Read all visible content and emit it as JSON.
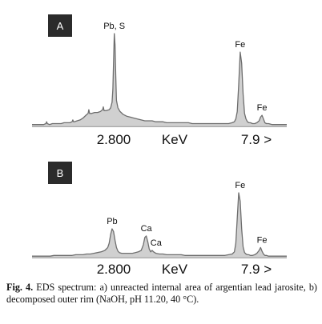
{
  "chart_data": [
    {
      "type": "line",
      "panel": "A",
      "x_axis": {
        "tick_labels": [
          "2.800",
          "KeV",
          "7.9 >"
        ]
      },
      "x": [
        0,
        4,
        8,
        12,
        16,
        19,
        20,
        21,
        24,
        28,
        32,
        36,
        40,
        44,
        48,
        52,
        55,
        56,
        57,
        58,
        62,
        66,
        70,
        74,
        77,
        78,
        79,
        82,
        86,
        90,
        94,
        97,
        98,
        99,
        102,
        106,
        108,
        110,
        111,
        112,
        113,
        114,
        115,
        116,
        118,
        121,
        125,
        130,
        135,
        140,
        145,
        150,
        155,
        160,
        165,
        170,
        175,
        180,
        185,
        190,
        195,
        200,
        205,
        210,
        215,
        220,
        225,
        230,
        235,
        240,
        245,
        250,
        255,
        260,
        265,
        270,
        275,
        278,
        280,
        282,
        284,
        286,
        288,
        290,
        292,
        294,
        296,
        298,
        300,
        303,
        306,
        309,
        312,
        314,
        316,
        318,
        320,
        322,
        325,
        330,
        335,
        340,
        345,
        350
      ],
      "y": [
        2,
        2,
        2,
        2,
        2,
        3,
        5,
        3,
        2,
        3,
        3,
        3,
        3,
        4,
        4,
        4,
        5,
        7,
        5,
        5,
        6,
        7,
        9,
        12,
        14,
        18,
        14,
        14,
        15,
        15,
        16,
        18,
        21,
        17,
        17,
        18,
        20,
        26,
        40,
        70,
        100,
        88,
        55,
        28,
        20,
        16,
        13,
        11,
        10,
        9,
        8,
        7,
        6,
        6,
        6,
        5,
        5,
        5,
        4,
        4,
        4,
        4,
        4,
        4,
        4,
        3,
        3,
        3,
        3,
        3,
        3,
        3,
        3,
        3,
        3,
        3,
        4,
        5,
        8,
        16,
        45,
        80,
        68,
        35,
        14,
        8,
        5,
        4,
        4,
        3,
        3,
        4,
        6,
        10,
        12,
        8,
        4,
        3,
        3,
        2,
        2,
        2,
        2,
        2
      ],
      "annotations": [
        {
          "text": "Pb, S",
          "at_x": 113
        },
        {
          "text": "Fe",
          "at_x": 286
        },
        {
          "text": "Fe",
          "at_x": 316
        }
      ]
    },
    {
      "type": "line",
      "panel": "B",
      "x_axis": {
        "tick_labels": [
          "2.800",
          "KeV",
          "7.9 >"
        ]
      },
      "x": [
        0,
        5,
        10,
        15,
        20,
        25,
        30,
        35,
        40,
        45,
        50,
        55,
        60,
        65,
        70,
        75,
        80,
        85,
        90,
        95,
        100,
        104,
        106,
        108,
        110,
        112,
        114,
        116,
        118,
        120,
        123,
        126,
        130,
        134,
        138,
        142,
        146,
        150,
        153,
        155,
        157,
        159,
        161,
        163,
        165,
        167,
        170,
        175,
        180,
        185,
        190,
        195,
        200,
        205,
        210,
        215,
        220,
        225,
        230,
        235,
        240,
        245,
        250,
        255,
        260,
        265,
        270,
        275,
        278,
        280,
        282,
        284,
        286,
        288,
        290,
        292,
        294,
        296,
        298,
        300,
        303,
        306,
        309,
        312,
        314,
        316,
        318,
        320,
        322,
        325,
        330,
        335,
        340,
        345,
        350
      ],
      "y": [
        2,
        2,
        2,
        2,
        2,
        2,
        3,
        3,
        3,
        3,
        3,
        3,
        4,
        4,
        4,
        5,
        5,
        6,
        7,
        8,
        10,
        14,
        20,
        32,
        40,
        36,
        24,
        14,
        9,
        7,
        6,
        6,
        6,
        6,
        6,
        7,
        8,
        10,
        18,
        28,
        30,
        22,
        12,
        8,
        10,
        8,
        6,
        5,
        5,
        4,
        4,
        4,
        4,
        4,
        3,
        3,
        3,
        3,
        3,
        3,
        3,
        3,
        3,
        3,
        3,
        3,
        4,
        5,
        8,
        20,
        55,
        90,
        78,
        40,
        15,
        7,
        5,
        4,
        4,
        3,
        3,
        4,
        6,
        10,
        14,
        9,
        5,
        3,
        3,
        2,
        2,
        2,
        2,
        2,
        2
      ],
      "annotations": [
        {
          "text": "Pb",
          "at_x": 110
        },
        {
          "text": "Ca",
          "at_x": 157
        },
        {
          "text": "Ca",
          "at_x": 166
        },
        {
          "text": "Fe",
          "at_x": 286
        },
        {
          "text": "Fe",
          "at_x": 316
        }
      ]
    }
  ],
  "caption": {
    "label": "Fig. 4.",
    "text": " EDS spectrum: a) unreacted internal area of argentian lead jarosite, b) decomposed outer rim (NaOH, pH 11.20, 40 °C)."
  }
}
